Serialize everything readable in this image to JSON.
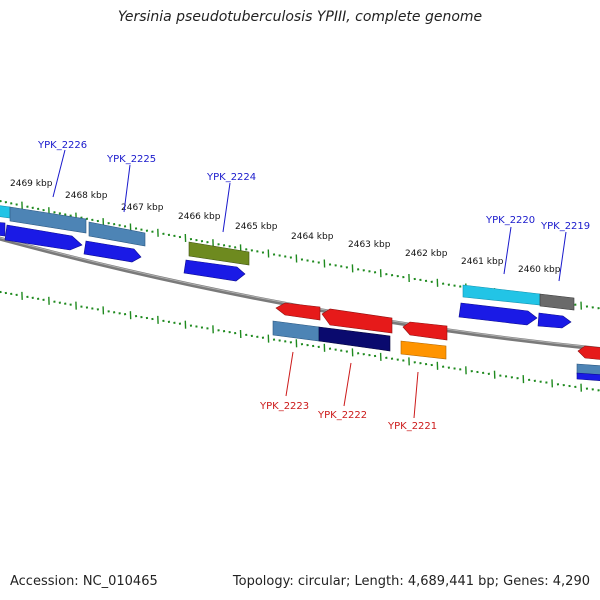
{
  "title": "Yersinia pseudotuberculosis YPIII, complete genome",
  "footer": {
    "accession": "Accession: NC_010465",
    "summary": "Topology: circular; Length: 4,689,441 bp; Genes: 4,290"
  },
  "colors": {
    "tick": "#1f8a1f",
    "backbone": "#7a7a7a",
    "forward_label": "#1a1acc",
    "reverse_label": "#cc1a1a"
  },
  "kbp_labels": [
    "2469 kbp",
    "2468 kbp",
    "2467 kbp",
    "2466 kbp",
    "2465 kbp",
    "2464 kbp",
    "2463 kbp",
    "2462 kbp",
    "2461 kbp",
    "2460 kbp"
  ],
  "genes": [
    {
      "id": "YPK_2226",
      "strand": "forward"
    },
    {
      "id": "YPK_2225",
      "strand": "forward"
    },
    {
      "id": "YPK_2224",
      "strand": "forward"
    },
    {
      "id": "YPK_2220",
      "strand": "forward"
    },
    {
      "id": "YPK_2219",
      "strand": "forward"
    },
    {
      "id": "YPK_2223",
      "strand": "reverse"
    },
    {
      "id": "YPK_2222",
      "strand": "reverse"
    },
    {
      "id": "YPK_2221",
      "strand": "reverse"
    }
  ]
}
